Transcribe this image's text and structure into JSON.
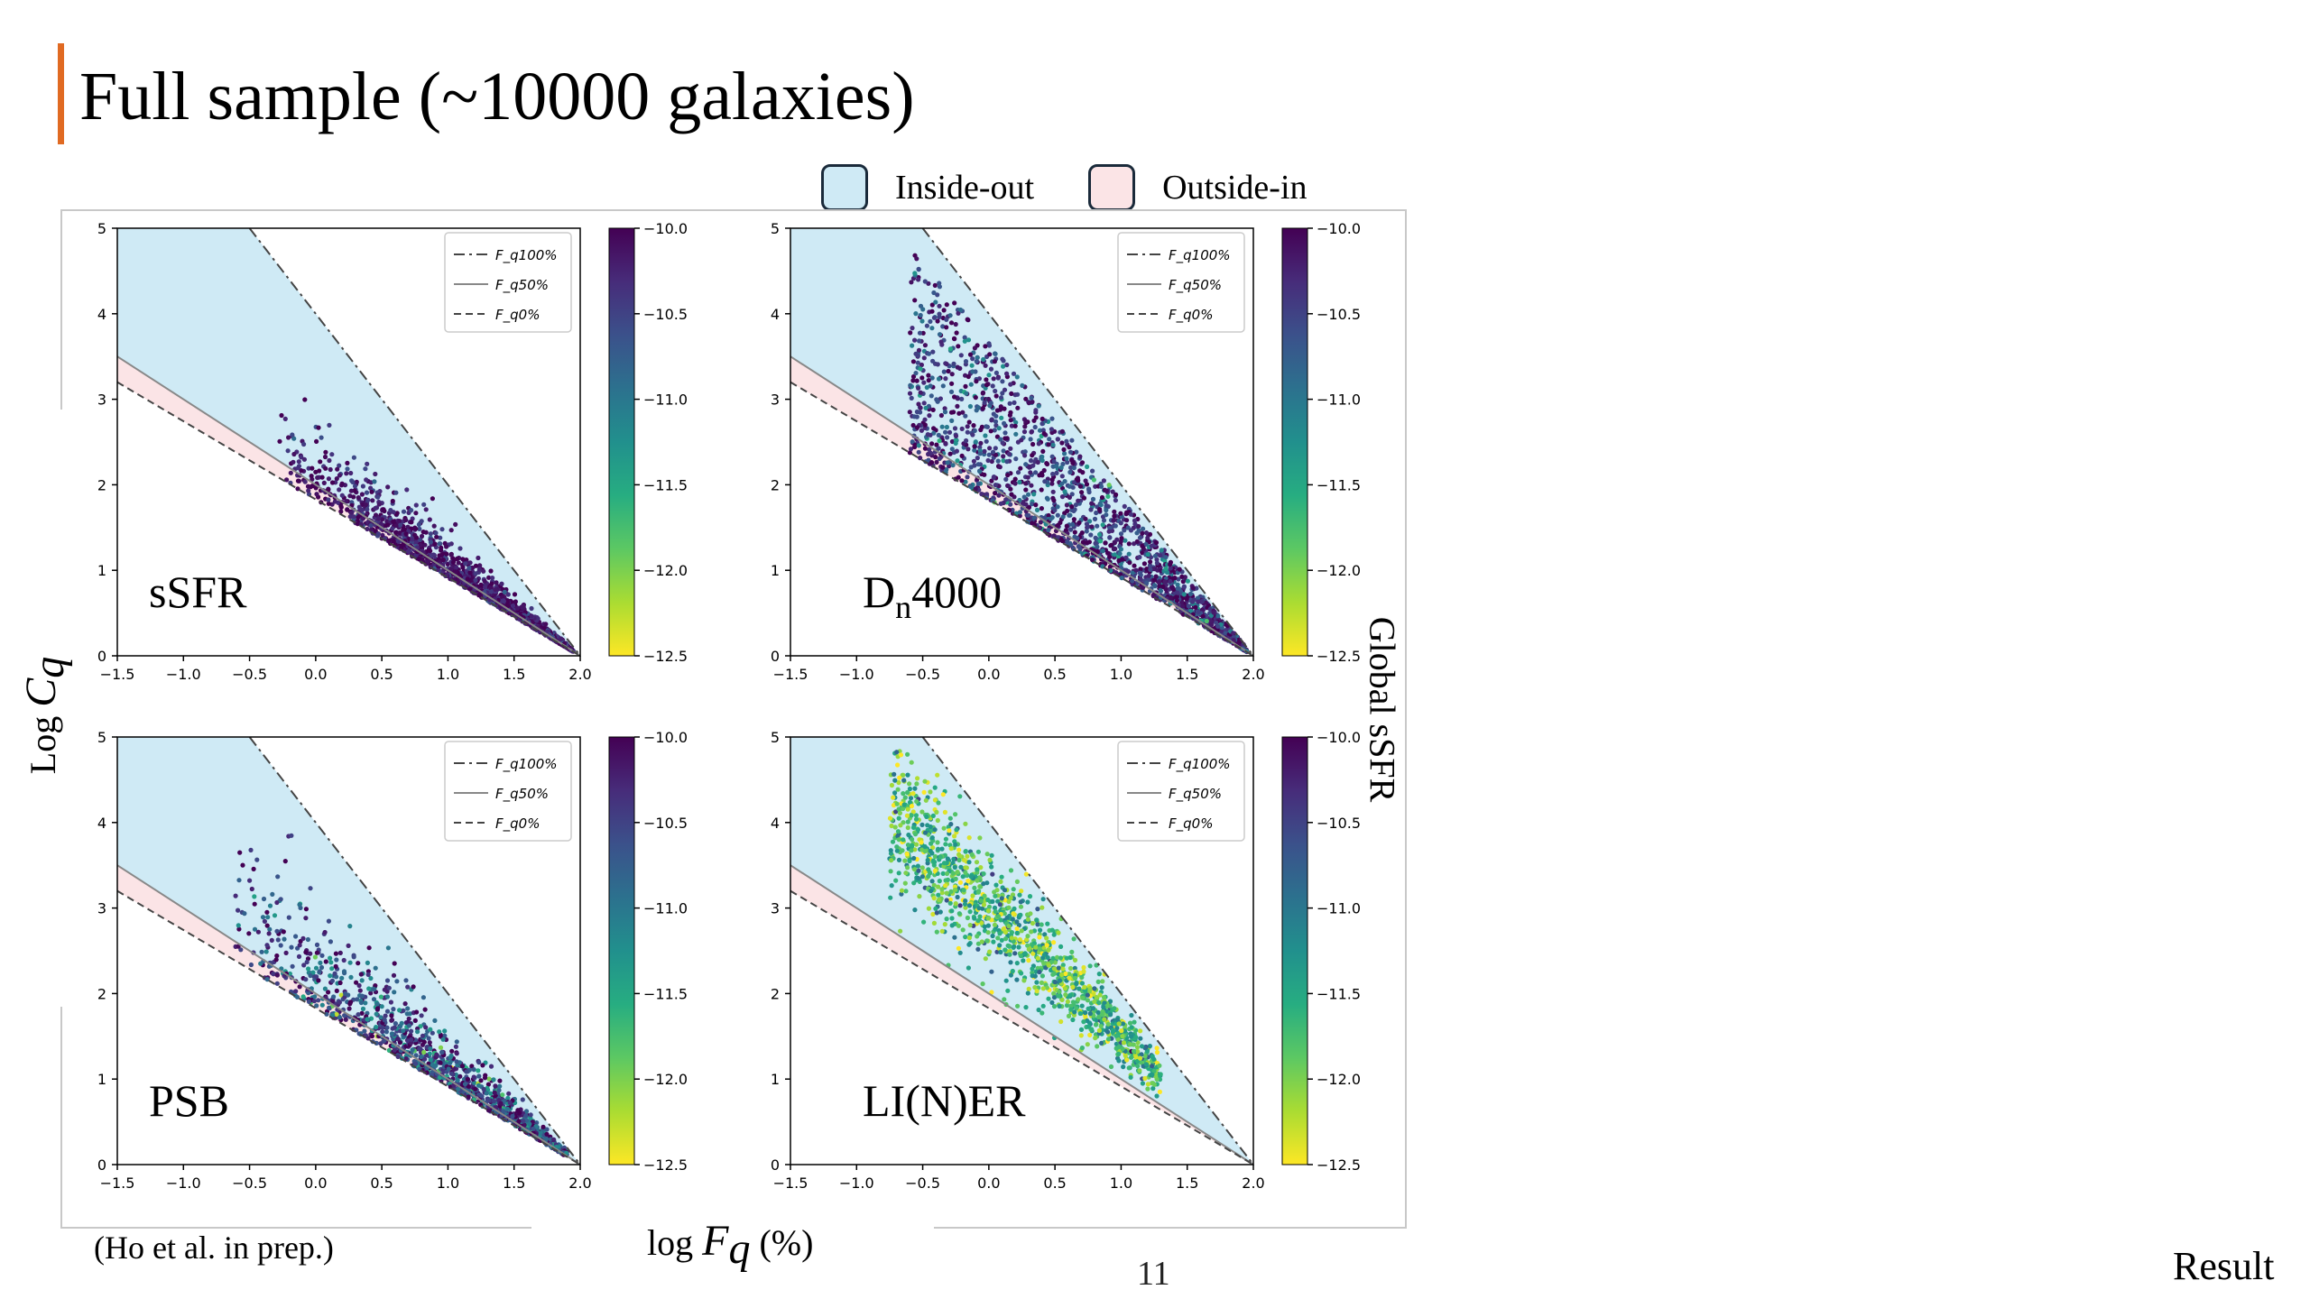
{
  "slide": {
    "title": "Full sample (~10000 galaxies)",
    "citation": "(Ho et al. in prep.)",
    "page_number": "11",
    "section": "Result",
    "accent_color": "#e06a22"
  },
  "legend_top": [
    {
      "label": "Inside-out",
      "color": "#cfeaf5"
    },
    {
      "label": "Outside-in",
      "color": "#fbe4e6"
    }
  ],
  "axis_labels": {
    "y_prefix": "Log ",
    "y_symbol": "C",
    "y_sub": "q",
    "x_prefix": "log ",
    "x_symbol": "F",
    "x_sub": "q",
    "x_suffix": " (%)",
    "colorbar": "Global sSFR"
  },
  "chart_data": [
    {
      "type": "scatter",
      "panel_label": "sSFR",
      "xlim": [
        -1.5,
        2.0
      ],
      "ylim": [
        0,
        5
      ],
      "x_ticks": [
        "−1.5",
        "−1.0",
        "−0.5",
        "0.0",
        "0.5",
        "1.0",
        "1.5",
        "2.0"
      ],
      "y_ticks": [
        "0",
        "1",
        "2",
        "3",
        "4",
        "5"
      ],
      "colorbar_ticks": [
        "−10.0",
        "−10.5",
        "−11.0",
        "−11.5",
        "−12.0",
        "−12.5"
      ],
      "colorbar_range": [
        -12.5,
        -10.0
      ],
      "lines": [
        {
          "name": "F_q100%",
          "style": "dashdot",
          "points": [
            [
              -0.5,
              5.0
            ],
            [
              2.0,
              0.0
            ]
          ]
        },
        {
          "name": "F_q50%",
          "style": "solid",
          "points": [
            [
              -1.5,
              3.5
            ],
            [
              2.0,
              0.0
            ]
          ]
        },
        {
          "name": "F_q0%",
          "style": "dashed",
          "points": [
            [
              -1.5,
              3.2
            ],
            [
              2.0,
              0.0
            ]
          ]
        }
      ],
      "legend": [
        "F_q100%",
        "F_q50%",
        "F_q0%"
      ],
      "distribution": {
        "n": 1400,
        "x_range": [
          -0.3,
          1.95
        ],
        "position": "near_lower",
        "spread": 0.35,
        "color_mean": -10.15,
        "color_sd": 0.25
      }
    },
    {
      "type": "scatter",
      "panel_label": "Dn4000",
      "panel_label_main": "D",
      "panel_label_sub": "n",
      "panel_label_rest": "4000",
      "xlim": [
        -1.5,
        2.0
      ],
      "ylim": [
        0,
        5
      ],
      "x_ticks": [
        "−1.5",
        "−1.0",
        "−0.5",
        "0.0",
        "0.5",
        "1.0",
        "1.5",
        "2.0"
      ],
      "y_ticks": [
        "0",
        "1",
        "2",
        "3",
        "4",
        "5"
      ],
      "colorbar_ticks": [
        "−10.0",
        "−10.5",
        "−11.0",
        "−11.5",
        "−12.0",
        "−12.5"
      ],
      "colorbar_range": [
        -12.5,
        -10.0
      ],
      "lines": [
        {
          "name": "F_q100%",
          "style": "dashdot",
          "points": [
            [
              -0.5,
              5.0
            ],
            [
              2.0,
              0.0
            ]
          ]
        },
        {
          "name": "F_q50%",
          "style": "solid",
          "points": [
            [
              -1.5,
              3.5
            ],
            [
              2.0,
              0.0
            ]
          ]
        },
        {
          "name": "F_q0%",
          "style": "dashed",
          "points": [
            [
              -1.5,
              3.2
            ],
            [
              2.0,
              0.0
            ]
          ]
        }
      ],
      "legend": [
        "F_q100%",
        "F_q50%",
        "F_q0%"
      ],
      "distribution": {
        "n": 1700,
        "x_range": [
          -0.6,
          1.95
        ],
        "position": "spread",
        "spread": 0.85,
        "color_mean": -10.35,
        "color_sd": 0.45
      }
    },
    {
      "type": "scatter",
      "panel_label": "PSB",
      "xlim": [
        -1.5,
        2.0
      ],
      "ylim": [
        0,
        5
      ],
      "x_ticks": [
        "−1.5",
        "−1.0",
        "−0.5",
        "0.0",
        "0.5",
        "1.0",
        "1.5",
        "2.0"
      ],
      "y_ticks": [
        "0",
        "1",
        "2",
        "3",
        "4",
        "5"
      ],
      "colorbar_ticks": [
        "−10.0",
        "−10.5",
        "−11.0",
        "−11.5",
        "−12.0",
        "−12.5"
      ],
      "colorbar_range": [
        -12.5,
        -10.0
      ],
      "lines": [
        {
          "name": "F_q100%",
          "style": "dashdot",
          "points": [
            [
              -0.5,
              5.0
            ],
            [
              2.0,
              0.0
            ]
          ]
        },
        {
          "name": "F_q50%",
          "style": "solid",
          "points": [
            [
              -1.5,
              3.5
            ],
            [
              2.0,
              0.0
            ]
          ]
        },
        {
          "name": "F_q0%",
          "style": "dashed",
          "points": [
            [
              -1.5,
              3.2
            ],
            [
              2.0,
              0.0
            ]
          ]
        }
      ],
      "legend": [
        "F_q100%",
        "F_q50%",
        "F_q0%"
      ],
      "distribution": {
        "n": 1200,
        "x_range": [
          -0.7,
          1.9
        ],
        "position": "near_lower",
        "spread": 0.5,
        "color_mean": -10.5,
        "color_sd": 0.55
      }
    },
    {
      "type": "scatter",
      "panel_label": "LI(N)ER",
      "xlim": [
        -1.5,
        2.0
      ],
      "ylim": [
        0,
        5
      ],
      "x_ticks": [
        "−1.5",
        "−1.0",
        "−0.5",
        "0.0",
        "0.5",
        "1.0",
        "1.5",
        "2.0"
      ],
      "y_ticks": [
        "0",
        "1",
        "2",
        "3",
        "4",
        "5"
      ],
      "colorbar_ticks": [
        "−10.0",
        "−10.5",
        "−11.0",
        "−11.5",
        "−12.0",
        "−12.5"
      ],
      "colorbar_range": [
        -12.5,
        -10.0
      ],
      "lines": [
        {
          "name": "F_q100%",
          "style": "dashdot",
          "points": [
            [
              -0.5,
              5.0
            ],
            [
              2.0,
              0.0
            ]
          ]
        },
        {
          "name": "F_q50%",
          "style": "solid",
          "points": [
            [
              -1.5,
              3.5
            ],
            [
              2.0,
              0.0
            ]
          ]
        },
        {
          "name": "F_q0%",
          "style": "dashed",
          "points": [
            [
              -1.5,
              3.2
            ],
            [
              2.0,
              0.0
            ]
          ]
        }
      ],
      "legend": [
        "F_q100%",
        "F_q50%",
        "F_q0%"
      ],
      "distribution": {
        "n": 1300,
        "x_range": [
          -0.75,
          1.3
        ],
        "position": "middle",
        "spread": 0.45,
        "color_mean": -11.7,
        "color_sd": 0.45
      }
    }
  ]
}
